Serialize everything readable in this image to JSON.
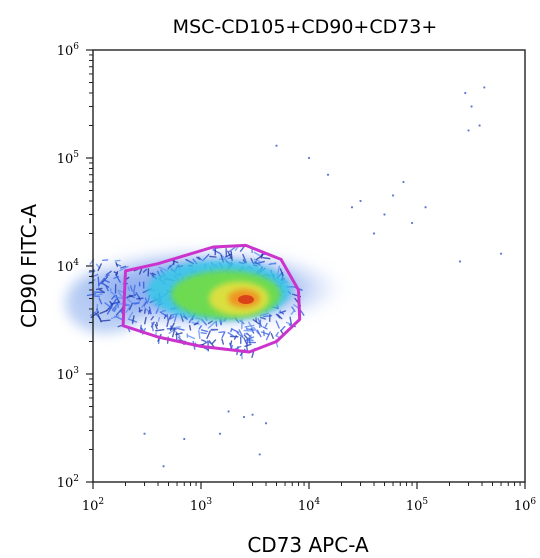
{
  "chart_data": {
    "type": "scatter",
    "subtype": "flow-cytometry density plot",
    "title": "MSC-CD105+CD90+CD73+",
    "xlabel": "CD73 APC-A",
    "ylabel": "CD90 FITC-A",
    "x_scale": "log",
    "y_scale": "log",
    "xlim": [
      100,
      1000000
    ],
    "ylim": [
      100,
      1000000
    ],
    "x_ticks": [
      {
        "value": 100,
        "base": "10",
        "exp": "2"
      },
      {
        "value": 1000,
        "base": "10",
        "exp": "3"
      },
      {
        "value": 10000,
        "base": "10",
        "exp": "4"
      },
      {
        "value": 100000,
        "base": "10",
        "exp": "5"
      },
      {
        "value": 1000000,
        "base": "10",
        "exp": "6"
      }
    ],
    "y_ticks": [
      {
        "value": 100,
        "base": "10",
        "exp": "2"
      },
      {
        "value": 1000,
        "base": "10",
        "exp": "3"
      },
      {
        "value": 10000,
        "base": "10",
        "exp": "4"
      },
      {
        "value": 100000,
        "base": "10",
        "exp": "5"
      },
      {
        "value": 1000000,
        "base": "10",
        "exp": "6"
      }
    ],
    "grid": false,
    "density_peak": {
      "x": 2500,
      "y": 5000
    },
    "gate": {
      "color": "#cc33cc",
      "vertices": [
        [
          200,
          9000
        ],
        [
          400,
          10500
        ],
        [
          1300,
          15000
        ],
        [
          2600,
          15500
        ],
        [
          5500,
          11500
        ],
        [
          8000,
          6000
        ],
        [
          8200,
          3200
        ],
        [
          5000,
          2000
        ],
        [
          2800,
          1600
        ],
        [
          1000,
          1800
        ],
        [
          400,
          2200
        ],
        [
          190,
          2800
        ]
      ]
    },
    "sparse_events": [
      [
        2500,
        400
      ],
      [
        1500,
        280
      ],
      [
        300,
        280
      ],
      [
        700,
        250
      ],
      [
        4000,
        350
      ],
      [
        3500,
        180
      ],
      [
        450,
        140
      ],
      [
        1800,
        450
      ],
      [
        3000,
        420
      ],
      [
        30000,
        40000
      ],
      [
        50000,
        30000
      ],
      [
        60000,
        45000
      ],
      [
        120000,
        35000
      ],
      [
        75000,
        60000
      ],
      [
        280000,
        400000
      ],
      [
        320000,
        300000
      ],
      [
        380000,
        200000
      ],
      [
        420000,
        450000
      ],
      [
        300000,
        180000
      ],
      [
        10000,
        100000
      ],
      [
        5000,
        130000
      ],
      [
        15000,
        70000
      ],
      [
        25000,
        35000
      ],
      [
        90000,
        25000
      ],
      [
        600000,
        13000
      ],
      [
        250000,
        11000
      ],
      [
        40000,
        20000
      ]
    ],
    "colors": {
      "sparse": "#1f3dbf",
      "dense_blue": "#2a4ee0",
      "cyan": "#37c8e8",
      "green": "#6fdc4a",
      "yellow": "#e0e040",
      "orange": "#f09020",
      "red": "#d63a1a"
    }
  }
}
